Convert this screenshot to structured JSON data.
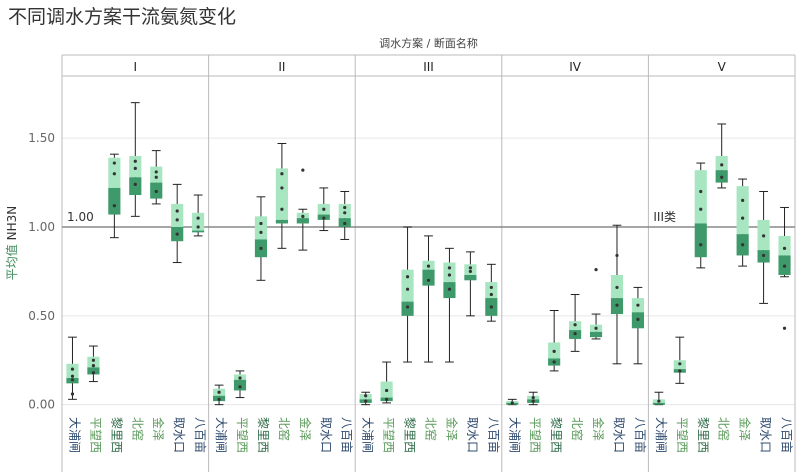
{
  "page_title": "不同调水方案干流氨氮变化",
  "chart_data": {
    "type": "boxplot",
    "title": "不同调水方案干流氨氮变化",
    "column_header": "调水方案 / 断面名称",
    "ylabel_prefix": "平均值",
    "ylabel_measure": "NH3N",
    "y_ticks": [
      "0.00",
      "0.50",
      "1.00",
      "1.50"
    ],
    "ylim": [
      -0.03,
      1.85
    ],
    "categories": [
      "大浦闸",
      "平望西",
      "黎里西",
      "北窑",
      "金泽",
      "取水口",
      "八百亩"
    ],
    "category_label_colors": [
      "#2f4b6e",
      "#5a9a5a",
      "#2f6b48",
      "#5a9a5a",
      "#5a9a5a",
      "#2f4b6e",
      "#2f4b6e"
    ],
    "reference_lines": [
      {
        "value": 1.0,
        "label_text": "1.00",
        "panel": "I",
        "position": "left"
      },
      {
        "value": 1.0,
        "label_text": "III类",
        "panel": "V",
        "position": "left"
      }
    ],
    "colors": {
      "box_light": "#a8e6c2",
      "box_dark": "#3e9a6a",
      "whisker": "#222222",
      "grid": "#e6e6e6",
      "separator": "#bbbbbb",
      "refline": "#888888"
    },
    "panels": [
      {
        "name": "I",
        "boxes": [
          {
            "min": 0.03,
            "q1": 0.12,
            "median": 0.15,
            "q3": 0.23,
            "max": 0.38,
            "points": [
              0.06,
              0.14,
              0.16,
              0.2
            ]
          },
          {
            "min": 0.13,
            "q1": 0.17,
            "median": 0.21,
            "q3": 0.27,
            "max": 0.33,
            "points": [
              0.18,
              0.22,
              0.25
            ]
          },
          {
            "min": 0.94,
            "q1": 1.07,
            "median": 1.22,
            "q3": 1.39,
            "max": 1.41,
            "points": [
              1.12,
              1.3,
              1.36
            ]
          },
          {
            "min": 1.06,
            "q1": 1.18,
            "median": 1.28,
            "q3": 1.4,
            "max": 1.7,
            "points": [
              1.24,
              1.33,
              1.37
            ]
          },
          {
            "min": 1.13,
            "q1": 1.16,
            "median": 1.25,
            "q3": 1.34,
            "max": 1.43,
            "points": [
              1.2,
              1.28,
              1.31
            ]
          },
          {
            "min": 0.8,
            "q1": 0.92,
            "median": 1.0,
            "q3": 1.13,
            "max": 1.24,
            "points": [
              0.96,
              1.04,
              1.09
            ]
          },
          {
            "min": 0.95,
            "q1": 0.97,
            "median": 0.98,
            "q3": 1.08,
            "max": 1.18,
            "points": [
              1.0,
              1.05
            ]
          }
        ]
      },
      {
        "name": "II",
        "boxes": [
          {
            "min": 0.0,
            "q1": 0.02,
            "median": 0.05,
            "q3": 0.09,
            "max": 0.11,
            "points": [
              0.03,
              0.07
            ]
          },
          {
            "min": 0.04,
            "q1": 0.08,
            "median": 0.14,
            "q3": 0.17,
            "max": 0.19,
            "points": [
              0.1,
              0.15
            ]
          },
          {
            "min": 0.7,
            "q1": 0.83,
            "median": 0.93,
            "q3": 1.06,
            "max": 1.17,
            "points": [
              0.88,
              0.97,
              1.02
            ]
          },
          {
            "min": 0.88,
            "q1": 1.02,
            "median": 1.04,
            "q3": 1.33,
            "max": 1.47,
            "points": [
              1.1,
              1.22,
              1.3
            ]
          },
          {
            "min": 0.87,
            "q1": 1.02,
            "median": 1.05,
            "q3": 1.08,
            "max": 1.1,
            "points": [
              1.06,
              1.32
            ]
          },
          {
            "min": 0.98,
            "q1": 1.04,
            "median": 1.07,
            "q3": 1.13,
            "max": 1.22,
            "points": [
              1.05,
              1.1
            ]
          },
          {
            "min": 0.93,
            "q1": 1.0,
            "median": 1.05,
            "q3": 1.13,
            "max": 1.2,
            "points": [
              1.02,
              1.08,
              1.11
            ]
          }
        ]
      },
      {
        "name": "III",
        "boxes": [
          {
            "min": 0.0,
            "q1": 0.01,
            "median": 0.03,
            "q3": 0.06,
            "max": 0.07,
            "points": [
              0.02,
              0.05
            ]
          },
          {
            "min": 0.01,
            "q1": 0.02,
            "median": 0.04,
            "q3": 0.13,
            "max": 0.24,
            "points": [
              0.03,
              0.08
            ]
          },
          {
            "min": 0.24,
            "q1": 0.5,
            "median": 0.58,
            "q3": 0.76,
            "max": 1.0,
            "points": [
              0.55,
              0.65,
              0.72
            ]
          },
          {
            "min": 0.24,
            "q1": 0.67,
            "median": 0.76,
            "q3": 0.81,
            "max": 0.95,
            "points": [
              0.7,
              0.78
            ]
          },
          {
            "min": 0.24,
            "q1": 0.6,
            "median": 0.69,
            "q3": 0.8,
            "max": 0.88,
            "points": [
              0.65,
              0.73,
              0.77
            ]
          },
          {
            "min": 0.5,
            "q1": 0.7,
            "median": 0.73,
            "q3": 0.79,
            "max": 0.86,
            "points": [
              0.75,
              0.77
            ]
          },
          {
            "min": 0.47,
            "q1": 0.5,
            "median": 0.6,
            "q3": 0.69,
            "max": 0.79,
            "points": [
              0.55,
              0.62,
              0.66
            ]
          }
        ]
      },
      {
        "name": "IV",
        "boxes": [
          {
            "min": 0.0,
            "q1": 0.0,
            "median": 0.01,
            "q3": 0.02,
            "max": 0.03,
            "points": [
              0.01
            ]
          },
          {
            "min": 0.0,
            "q1": 0.01,
            "median": 0.03,
            "q3": 0.05,
            "max": 0.07,
            "points": [
              0.02,
              0.04
            ]
          },
          {
            "min": 0.19,
            "q1": 0.22,
            "median": 0.26,
            "q3": 0.35,
            "max": 0.53,
            "points": [
              0.24,
              0.3
            ]
          },
          {
            "min": 0.3,
            "q1": 0.37,
            "median": 0.42,
            "q3": 0.47,
            "max": 0.62,
            "points": [
              0.4,
              0.45
            ]
          },
          {
            "min": 0.37,
            "q1": 0.38,
            "median": 0.41,
            "q3": 0.45,
            "max": 0.51,
            "points": [
              0.43,
              0.76
            ]
          },
          {
            "min": 0.23,
            "q1": 0.51,
            "median": 0.6,
            "q3": 0.73,
            "max": 1.01,
            "points": [
              0.56,
              0.66,
              0.84
            ]
          },
          {
            "min": 0.23,
            "q1": 0.43,
            "median": 0.52,
            "q3": 0.6,
            "max": 0.66,
            "points": [
              0.48,
              0.56
            ]
          }
        ]
      },
      {
        "name": "V",
        "boxes": [
          {
            "min": 0.0,
            "q1": 0.0,
            "median": 0.01,
            "q3": 0.03,
            "max": 0.07,
            "points": [
              0.02
            ]
          },
          {
            "min": 0.12,
            "q1": 0.18,
            "median": 0.2,
            "q3": 0.25,
            "max": 0.38,
            "points": [
              0.19,
              0.23
            ]
          },
          {
            "min": 0.77,
            "q1": 0.83,
            "median": 1.02,
            "q3": 1.32,
            "max": 1.36,
            "points": [
              0.9,
              1.1,
              1.2
            ]
          },
          {
            "min": 1.22,
            "q1": 1.25,
            "median": 1.32,
            "q3": 1.4,
            "max": 1.58,
            "points": [
              1.28,
              1.35
            ]
          },
          {
            "min": 0.78,
            "q1": 0.84,
            "median": 0.96,
            "q3": 1.23,
            "max": 1.27,
            "points": [
              0.9,
              1.05,
              1.15
            ]
          },
          {
            "min": 0.57,
            "q1": 0.8,
            "median": 0.87,
            "q3": 1.04,
            "max": 1.2,
            "points": [
              0.84,
              0.95
            ]
          },
          {
            "min": 0.72,
            "q1": 0.73,
            "median": 0.84,
            "q3": 0.95,
            "max": 1.11,
            "points": [
              0.78,
              0.88,
              0.43
            ]
          }
        ]
      }
    ]
  }
}
